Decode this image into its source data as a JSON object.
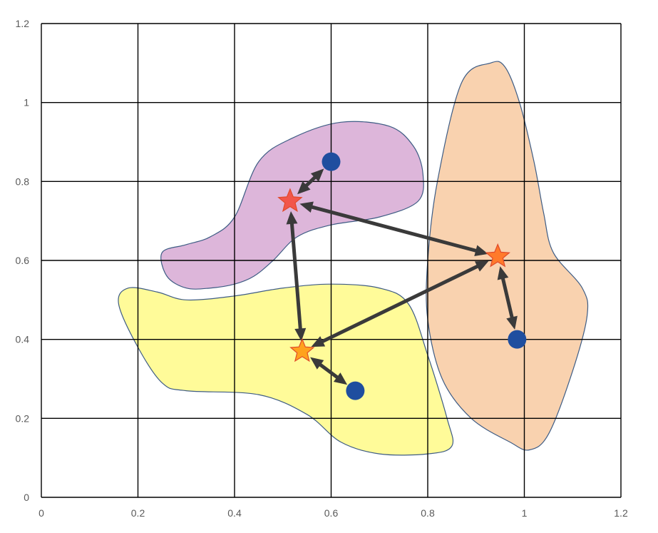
{
  "chart_data": {
    "type": "scatter",
    "title": "",
    "xlabel": "",
    "ylabel": "",
    "xlim": [
      0,
      1.2
    ],
    "ylim": [
      0,
      1.2
    ],
    "grid": true,
    "x_ticks": [
      "0",
      "0.2",
      "0.4",
      "0.6",
      "0.8",
      "1",
      "1.2"
    ],
    "y_ticks": [
      "0",
      "0.2",
      "0.4",
      "0.6",
      "0.8",
      "1",
      "1.2"
    ],
    "x_tick_values": [
      0,
      0.2,
      0.4,
      0.6,
      0.8,
      1.0,
      1.2
    ],
    "y_tick_values": [
      0,
      0.2,
      0.4,
      0.6,
      0.8,
      1.0,
      1.2
    ],
    "regions": [
      {
        "fill": "#DDB6DA",
        "stroke": "#3E5C84",
        "outline": [
          [
            0.26,
            0.56
          ],
          [
            0.25,
            0.62
          ],
          [
            0.3,
            0.64
          ],
          [
            0.35,
            0.66
          ],
          [
            0.4,
            0.71
          ],
          [
            0.45,
            0.85
          ],
          [
            0.52,
            0.91
          ],
          [
            0.62,
            0.95
          ],
          [
            0.72,
            0.94
          ],
          [
            0.77,
            0.89
          ],
          [
            0.79,
            0.82
          ],
          [
            0.78,
            0.75
          ],
          [
            0.7,
            0.71
          ],
          [
            0.6,
            0.69
          ],
          [
            0.53,
            0.66
          ],
          [
            0.48,
            0.6
          ],
          [
            0.44,
            0.56
          ],
          [
            0.4,
            0.54
          ],
          [
            0.35,
            0.53
          ],
          [
            0.3,
            0.53
          ]
        ]
      },
      {
        "fill": "#FFFB99",
        "stroke": "#3E5C84",
        "outline": [
          [
            0.18,
            0.53
          ],
          [
            0.16,
            0.49
          ],
          [
            0.2,
            0.38
          ],
          [
            0.25,
            0.29
          ],
          [
            0.3,
            0.27
          ],
          [
            0.45,
            0.26
          ],
          [
            0.55,
            0.21
          ],
          [
            0.62,
            0.14
          ],
          [
            0.7,
            0.11
          ],
          [
            0.8,
            0.11
          ],
          [
            0.85,
            0.13
          ],
          [
            0.84,
            0.2
          ],
          [
            0.8,
            0.36
          ],
          [
            0.76,
            0.49
          ],
          [
            0.7,
            0.53
          ],
          [
            0.6,
            0.54
          ],
          [
            0.5,
            0.53
          ],
          [
            0.4,
            0.51
          ],
          [
            0.3,
            0.5
          ],
          [
            0.24,
            0.52
          ]
        ]
      },
      {
        "fill": "#F9D2AF",
        "stroke": "#3E5C84",
        "outline": [
          [
            0.93,
            1.1
          ],
          [
            0.87,
            1.05
          ],
          [
            0.82,
            0.8
          ],
          [
            0.8,
            0.6
          ],
          [
            0.8,
            0.45
          ],
          [
            0.83,
            0.3
          ],
          [
            0.89,
            0.2
          ],
          [
            0.97,
            0.14
          ],
          [
            1.01,
            0.12
          ],
          [
            1.05,
            0.16
          ],
          [
            1.1,
            0.32
          ],
          [
            1.13,
            0.46
          ],
          [
            1.12,
            0.53
          ],
          [
            1.06,
            0.62
          ],
          [
            1.04,
            0.72
          ],
          [
            1.02,
            0.85
          ],
          [
            0.99,
            1.0
          ],
          [
            0.96,
            1.09
          ]
        ]
      }
    ],
    "points": [
      {
        "x": 0.6,
        "y": 0.85,
        "color": "#1F4E9F"
      },
      {
        "x": 0.65,
        "y": 0.27,
        "color": "#1F4E9F"
      },
      {
        "x": 0.985,
        "y": 0.4,
        "color": "#1F4E9F"
      }
    ],
    "stars": [
      {
        "x": 0.515,
        "y": 0.75,
        "color": "#F2564A"
      },
      {
        "x": 0.54,
        "y": 0.37,
        "color": "#FFA21D"
      },
      {
        "x": 0.945,
        "y": 0.61,
        "color": "#FF7A2A"
      }
    ],
    "arrows": [
      {
        "from": [
          0.6,
          0.85
        ],
        "to": [
          0.515,
          0.75
        ]
      },
      {
        "from": [
          0.65,
          0.27
        ],
        "to": [
          0.54,
          0.37
        ]
      },
      {
        "from": [
          0.985,
          0.4
        ],
        "to": [
          0.945,
          0.61
        ]
      },
      {
        "from": [
          0.515,
          0.75
        ],
        "to": [
          0.945,
          0.61
        ]
      },
      {
        "from": [
          0.515,
          0.75
        ],
        "to": [
          0.54,
          0.37
        ]
      },
      {
        "from": [
          0.945,
          0.61
        ],
        "to": [
          0.54,
          0.37
        ]
      }
    ],
    "arrow_color": "#3A3A3A"
  }
}
